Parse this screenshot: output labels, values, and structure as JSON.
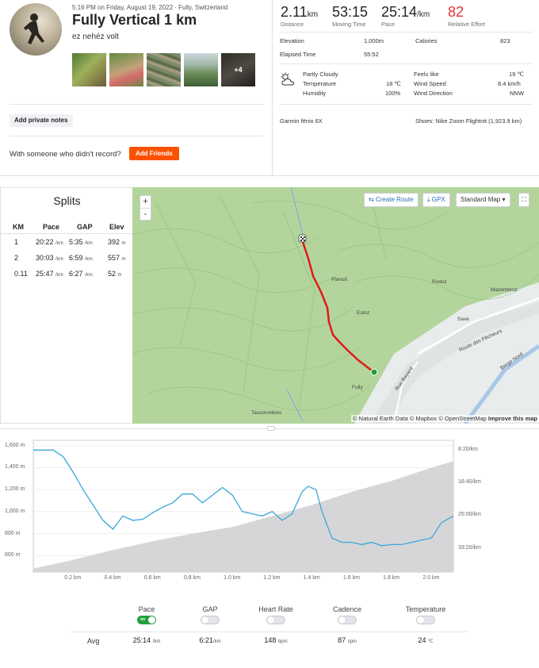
{
  "header": {
    "meta": "5:16 PM on Friday, August 19, 2022 · Fully, Switzerland",
    "title": "Fully Vertical 1 km",
    "description": "ez nehéz volt",
    "photos_more": "+4",
    "add_notes": "Add private notes",
    "with_someone": "With someone who didn't record?",
    "add_friends": "Add Friends"
  },
  "stats": {
    "distance": {
      "value": "2.11",
      "unit": "km",
      "label": "Distance"
    },
    "moving_time": {
      "value": "53:15",
      "label": "Moving Time"
    },
    "pace": {
      "value": "25:14",
      "unit": "/km",
      "label": "Pace"
    },
    "effort": {
      "value": "82",
      "label": "Relative Effort"
    }
  },
  "details": {
    "elevation_label": "Elevation",
    "elevation_value": "1,000m",
    "calories_label": "Calories",
    "calories_value": "823",
    "elapsed_label": "Elapsed Time",
    "elapsed_value": "55:52",
    "weather_label": "Partly Cloudy",
    "temperature_label": "Temperature",
    "temperature_value": "18 ℃",
    "humidity_label": "Humidity",
    "humidity_value": "100%",
    "feels_label": "Feels like",
    "feels_value": "19 ℃",
    "wind_speed_label": "Wind Speed",
    "wind_speed_value": "8.4 km/h",
    "wind_dir_label": "Wind Direction",
    "wind_dir_value": "NNW",
    "device": "Garmin fēnix 6X",
    "shoes": "Shoes: Nike Zoom Flightnit (1,923.9 km)"
  },
  "splits": {
    "title": "Splits",
    "headers": {
      "km": "KM",
      "pace": "Pace",
      "gap": "GAP",
      "elev": "Elev"
    },
    "unit_pace": "/km",
    "unit_elev": "m",
    "rows": [
      {
        "km": "1",
        "pace": "20:22",
        "gap": "5:35",
        "elev": "392"
      },
      {
        "km": "2",
        "pace": "30:03",
        "gap": "6:59",
        "elev": "557"
      },
      {
        "km": "0.11",
        "pace": "25:47",
        "gap": "6:27",
        "elev": "52"
      }
    ]
  },
  "map": {
    "zoom_in": "+",
    "zoom_out": "-",
    "create_route": "Create Route",
    "gpx": "GPX",
    "map_type": "Standard Map",
    "labels": {
      "planuit": "Planuit",
      "rodoz": "Rodoz",
      "euloz": "Euloz",
      "mazembroz": "Mazembroz",
      "saxe": "Saxe",
      "route_pecheurs": "Route des Pêcheurs",
      "rue_bayard": "Rue Bayard",
      "fully": "Fully",
      "tassonnieres": "Tassonnières",
      "berge_nord": "Berge Nord"
    },
    "attribution": "© Natural Earth Data © Mapbox © OpenStreetMap",
    "improve": "Improve this map"
  },
  "chart_data": {
    "type": "line",
    "x_unit": "km",
    "x_ticks": [
      "0.2 km",
      "0.4 km",
      "0.6 km",
      "0.8 km",
      "1.0 km",
      "1.2 km",
      "1.4 km",
      "1.6 km",
      "1.8 km",
      "2.0 km"
    ],
    "y_left_ticks": [
      "1,600 m",
      "1,400 m",
      "1,200 m",
      "1,000 m",
      "800 m",
      "600 m"
    ],
    "y_right_ticks": [
      "8:20/km",
      "16:40/km",
      "25:00/km",
      "33:20/km"
    ],
    "series": [
      {
        "name": "Pace",
        "x": [
          0.0,
          0.1,
          0.15,
          0.2,
          0.25,
          0.3,
          0.35,
          0.4,
          0.45,
          0.5,
          0.55,
          0.6,
          0.65,
          0.7,
          0.75,
          0.8,
          0.85,
          0.9,
          0.95,
          1.0,
          1.05,
          1.1,
          1.15,
          1.2,
          1.25,
          1.3,
          1.35,
          1.38,
          1.42,
          1.45,
          1.5,
          1.55,
          1.6,
          1.65,
          1.7,
          1.75,
          1.8,
          1.85,
          1.9,
          1.95,
          2.0,
          2.05,
          2.11
        ],
        "y": [
          1560,
          1560,
          1500,
          1360,
          1200,
          1060,
          920,
          840,
          960,
          920,
          930,
          990,
          1040,
          1080,
          1160,
          1160,
          1080,
          1150,
          1220,
          1150,
          1000,
          980,
          960,
          1000,
          920,
          980,
          1180,
          1230,
          1200,
          1000,
          760,
          720,
          720,
          700,
          720,
          690,
          700,
          700,
          720,
          740,
          760,
          900,
          960
        ]
      },
      {
        "name": "Elevation",
        "x": [
          0.0,
          0.2,
          0.4,
          0.6,
          0.8,
          1.0,
          1.2,
          1.4,
          1.6,
          1.8,
          2.0,
          2.11
        ],
        "y": [
          480,
          560,
          650,
          730,
          800,
          860,
          960,
          1060,
          1180,
          1280,
          1400,
          1460
        ]
      }
    ],
    "xlim": [
      0,
      2.11
    ],
    "ylim": [
      450,
      1620
    ]
  },
  "toggles": [
    {
      "label": "Pace",
      "on": true,
      "on_text": "on"
    },
    {
      "label": "GAP",
      "on": false
    },
    {
      "label": "Heart Rate",
      "on": false
    },
    {
      "label": "Cadence",
      "on": false
    },
    {
      "label": "Temperature",
      "on": false
    }
  ],
  "averages": {
    "label": "Avg",
    "pace": "25:14",
    "pace_unit": "/km",
    "gap": "6:21",
    "gap_unit": "/km",
    "hr": "148",
    "hr_unit": "bpm",
    "cadence": "87",
    "cadence_unit": "spm",
    "temp": "24",
    "temp_unit": "℃"
  },
  "colors": {
    "accent": "#fc5200",
    "effort": "#e33434",
    "pace_line": "#3ba6d9",
    "route": "#e01a1a",
    "toggle_on": "#21a038"
  }
}
